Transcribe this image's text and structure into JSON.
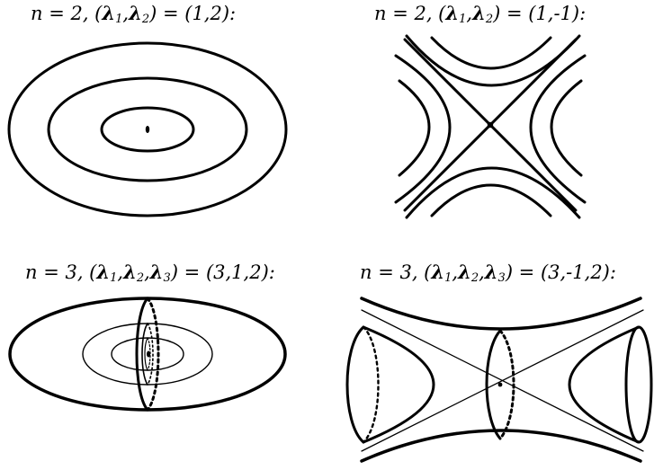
{
  "panels": [
    {
      "id": "ellipse-2d",
      "title": {
        "prefix": "n = 2, (",
        "l1": "λ",
        "s1": "1",
        "sep1": ",",
        "l2": "λ",
        "s2": "2",
        "suffix": ") = (1,2):"
      }
    },
    {
      "id": "hyperbola-2d",
      "title": {
        "prefix": "n = 2, (",
        "l1": "λ",
        "s1": "1",
        "sep1": ",",
        "l2": "λ",
        "s2": "2",
        "suffix": ") = (1,-1):"
      }
    },
    {
      "id": "ellipsoid-3d",
      "title": {
        "prefix": "n = 3, (",
        "l1": "λ",
        "s1": "1",
        "sep1": ",",
        "l2": "λ",
        "s2": "2",
        "sep2": ",",
        "l3": "λ",
        "s3": "3",
        "suffix": ") = (3,1,2):"
      }
    },
    {
      "id": "hyperboloid-3d",
      "title": {
        "prefix": "n = 3, (",
        "l1": "λ",
        "s1": "1",
        "sep1": ",",
        "l2": "λ",
        "s2": "2",
        "sep2": ",",
        "l3": "λ",
        "s3": "3",
        "suffix": ") = (3,-1,2):"
      }
    }
  ],
  "colors": {
    "stroke": "#000000",
    "background": "#ffffff"
  }
}
